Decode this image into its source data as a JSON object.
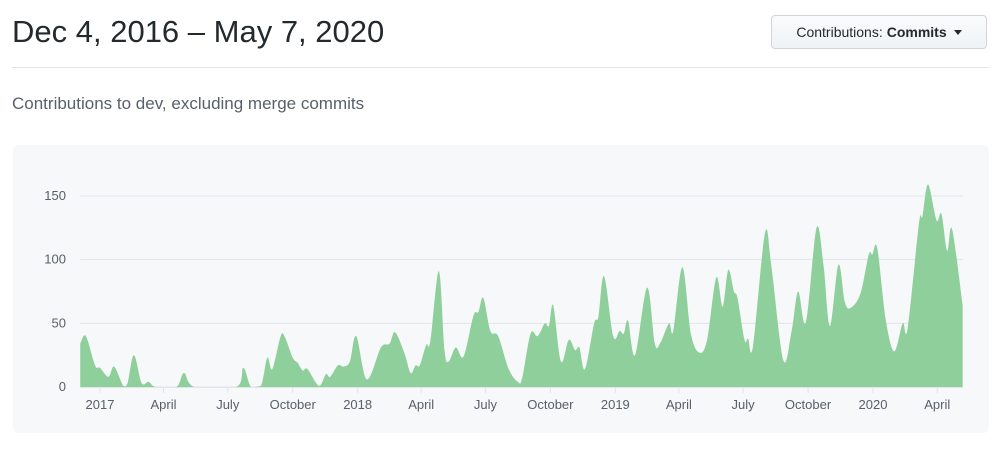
{
  "header": {
    "title": "Dec 4, 2016 – May 7, 2020"
  },
  "dropdown": {
    "label": "Contributions:",
    "value": "Commits",
    "icon": "caret-down-icon"
  },
  "subtitle": "Contributions to dev, excluding merge commits",
  "colors": {
    "area": "#8fcf9c",
    "panel": "#f6f8fa",
    "grid": "#e1e4e8"
  },
  "chart_data": {
    "type": "area",
    "title": "",
    "xlabel": "",
    "ylabel": "",
    "ylim": [
      0,
      150
    ],
    "yticks": [
      0,
      50,
      100,
      150
    ],
    "grid": true,
    "xlim": [
      "2016-12-04",
      "2020-05-07"
    ],
    "xticks": [
      {
        "date": "2017-01-01",
        "label": "2017"
      },
      {
        "date": "2017-04-01",
        "label": "April"
      },
      {
        "date": "2017-07-01",
        "label": "July"
      },
      {
        "date": "2017-10-01",
        "label": "October"
      },
      {
        "date": "2018-01-01",
        "label": "2018"
      },
      {
        "date": "2018-04-01",
        "label": "April"
      },
      {
        "date": "2018-07-01",
        "label": "July"
      },
      {
        "date": "2018-10-01",
        "label": "October"
      },
      {
        "date": "2019-01-01",
        "label": "2019"
      },
      {
        "date": "2019-04-01",
        "label": "April"
      },
      {
        "date": "2019-07-01",
        "label": "July"
      },
      {
        "date": "2019-10-01",
        "label": "October"
      },
      {
        "date": "2020-01-01",
        "label": "2020"
      },
      {
        "date": "2020-04-01",
        "label": "April"
      }
    ],
    "x": [
      "2016-12-04",
      "2016-12-12",
      "2016-12-25",
      "2017-01-01",
      "2017-01-13",
      "2017-01-21",
      "2017-02-03",
      "2017-02-09",
      "2017-02-18",
      "2017-03-01",
      "2017-03-11",
      "2017-03-21",
      "2017-04-19",
      "2017-04-30",
      "2017-05-15",
      "2017-07-13",
      "2017-07-23",
      "2017-08-03",
      "2017-08-17",
      "2017-08-26",
      "2017-09-02",
      "2017-09-14",
      "2017-09-20",
      "2017-10-01",
      "2017-10-08",
      "2017-10-15",
      "2017-10-22",
      "2017-11-07",
      "2017-11-17",
      "2017-11-23",
      "2017-12-04",
      "2017-12-12",
      "2017-12-21",
      "2017-12-30",
      "2018-01-14",
      "2018-02-03",
      "2018-02-15",
      "2018-02-23",
      "2018-03-08",
      "2018-03-17",
      "2018-03-24",
      "2018-03-30",
      "2018-04-08",
      "2018-04-14",
      "2018-04-26",
      "2018-05-04",
      "2018-05-10",
      "2018-05-20",
      "2018-05-31",
      "2018-06-14",
      "2018-06-21",
      "2018-06-28",
      "2018-07-08",
      "2018-07-19",
      "2018-08-03",
      "2018-08-16",
      "2018-08-22",
      "2018-09-03",
      "2018-09-13",
      "2018-09-23",
      "2018-09-29",
      "2018-10-05",
      "2018-10-16",
      "2018-10-27",
      "2018-11-05",
      "2018-11-11",
      "2018-11-19",
      "2018-12-02",
      "2018-12-08",
      "2018-12-16",
      "2018-12-29",
      "2019-01-07",
      "2019-01-13",
      "2019-01-19",
      "2019-01-29",
      "2019-02-15",
      "2019-02-26",
      "2019-03-06",
      "2019-03-18",
      "2019-03-24",
      "2019-04-06",
      "2019-04-18",
      "2019-04-30",
      "2019-05-11",
      "2019-05-24",
      "2019-06-02",
      "2019-06-10",
      "2019-06-18",
      "2019-06-23",
      "2019-07-03",
      "2019-07-08",
      "2019-07-15",
      "2019-08-01",
      "2019-08-10",
      "2019-08-27",
      "2019-09-08",
      "2019-09-17",
      "2019-09-28",
      "2019-10-13",
      "2019-10-23",
      "2019-11-01",
      "2019-11-13",
      "2019-11-22",
      "2019-11-30",
      "2019-12-14",
      "2019-12-26",
      "2019-12-31",
      "2020-01-07",
      "2020-01-19",
      "2020-01-31",
      "2020-02-12",
      "2020-02-19",
      "2020-03-06",
      "2020-03-11",
      "2020-03-19",
      "2020-03-31",
      "2020-04-07",
      "2020-04-15",
      "2020-04-22",
      "2020-05-07"
    ],
    "values": [
      34,
      40,
      17,
      15,
      8,
      16,
      1,
      3,
      25,
      3,
      4,
      0,
      0,
      11,
      0,
      0,
      15,
      0,
      1,
      23,
      14,
      40,
      39,
      23,
      19,
      13,
      14,
      1,
      10,
      8,
      17,
      16,
      20,
      40,
      6,
      31,
      34,
      43,
      27,
      11,
      17,
      17,
      33,
      36,
      91,
      29,
      20,
      31,
      24,
      56,
      59,
      70,
      44,
      40,
      14,
      4,
      7,
      42,
      40,
      50,
      48,
      64,
      20,
      37,
      29,
      31,
      14,
      50,
      55,
      87,
      40,
      44,
      42,
      52,
      25,
      78,
      34,
      35,
      50,
      44,
      94,
      42,
      27,
      37,
      86,
      63,
      92,
      75,
      70,
      37,
      38,
      32,
      121,
      95,
      21,
      45,
      75,
      51,
      125,
      95,
      48,
      96,
      67,
      62,
      73,
      104,
      104,
      109,
      53,
      28,
      50,
      46,
      128,
      134,
      159,
      131,
      136,
      107,
      124,
      64
    ]
  }
}
